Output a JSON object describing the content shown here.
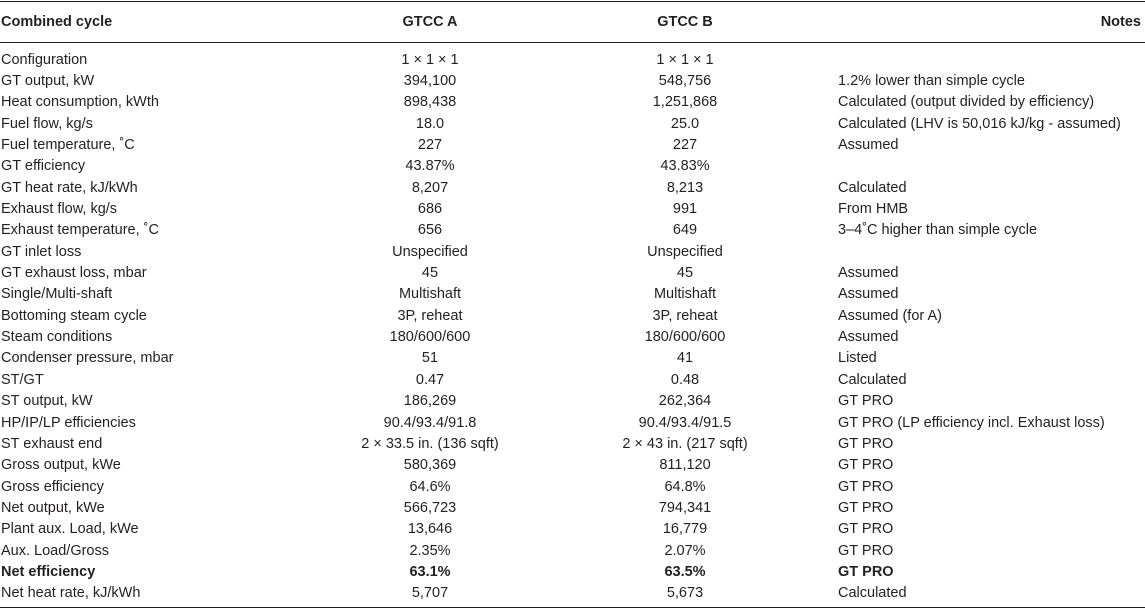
{
  "table": {
    "headers": [
      "Combined cycle",
      "GTCC A",
      "GTCC B",
      "Notes"
    ],
    "rows": [
      {
        "label": "Configuration",
        "a": "1 × 1 × 1",
        "b": "1 × 1 × 1",
        "note": ""
      },
      {
        "label": "GT output, kW",
        "a": "394,100",
        "b": "548,756",
        "note": "1.2% lower than simple cycle"
      },
      {
        "label": "Heat consumption, kWth",
        "a": "898,438",
        "b": "1,251,868",
        "note": "Calculated (output divided by efficiency)"
      },
      {
        "label": "Fuel flow, kg/s",
        "a": "18.0",
        "b": "25.0",
        "note": "Calculated (LHV is 50,016 kJ/kg - assumed)"
      },
      {
        "label": "Fuel temperature, ˚C",
        "a": "227",
        "b": "227",
        "note": "Assumed"
      },
      {
        "label": "GT efficiency",
        "a": "43.87%",
        "b": "43.83%",
        "note": ""
      },
      {
        "label": "GT heat rate, kJ/kWh",
        "a": "8,207",
        "b": "8,213",
        "note": "Calculated"
      },
      {
        "label": "Exhaust flow, kg/s",
        "a": "686",
        "b": "991",
        "note": "From HMB"
      },
      {
        "label": "Exhaust temperature, ˚C",
        "a": "656",
        "b": "649",
        "note": "3–4˚C higher than simple cycle"
      },
      {
        "label": "GT inlet loss",
        "a": "Unspecified",
        "b": "Unspecified",
        "note": ""
      },
      {
        "label": "GT exhaust loss, mbar",
        "a": "45",
        "b": "45",
        "note": "Assumed"
      },
      {
        "label": "Single/Multi-shaft",
        "a": "Multishaft",
        "b": "Multishaft",
        "note": "Assumed"
      },
      {
        "label": "Bottoming steam cycle",
        "a": "3P, reheat",
        "b": "3P, reheat",
        "note": "Assumed (for A)"
      },
      {
        "label": "Steam conditions",
        "a": "180/600/600",
        "b": "180/600/600",
        "note": "Assumed"
      },
      {
        "label": "Condenser pressure, mbar",
        "a": "51",
        "b": "41",
        "note": "Listed"
      },
      {
        "label": "ST/GT",
        "a": "0.47",
        "b": "0.48",
        "note": "Calculated"
      },
      {
        "label": "ST output, kW",
        "a": "186,269",
        "b": "262,364",
        "note": "GT PRO"
      },
      {
        "label": "HP/IP/LP efficiencies",
        "a": "90.4/93.4/91.8",
        "b": "90.4/93.4/91.5",
        "note": "GT PRO (LP efficiency incl. Exhaust loss)"
      },
      {
        "label": "ST exhaust end",
        "a": "2 × 33.5 in. (136 sqft)",
        "b": "2 × 43 in. (217 sqft)",
        "note": "GT PRO"
      },
      {
        "label": "Gross output, kWe",
        "a": "580,369",
        "b": "811,120",
        "note": "GT PRO"
      },
      {
        "label": "Gross efficiency",
        "a": "64.6%",
        "b": "64.8%",
        "note": "GT PRO"
      },
      {
        "label": "Net output, kWe",
        "a": "566,723",
        "b": "794,341",
        "note": "GT PRO"
      },
      {
        "label": "Plant aux. Load, kWe",
        "a": "13,646",
        "b": "16,779",
        "note": "GT PRO"
      },
      {
        "label": "Aux. Load/Gross",
        "a": "2.35%",
        "b": "2.07%",
        "note": "GT PRO"
      },
      {
        "label": "Net efficiency",
        "a": "63.1%",
        "b": "63.5%",
        "note": "GT PRO",
        "bold": true
      },
      {
        "label": "Net heat rate, kJ/kWh",
        "a": "5,707",
        "b": "5,673",
        "note": "Calculated"
      }
    ]
  }
}
